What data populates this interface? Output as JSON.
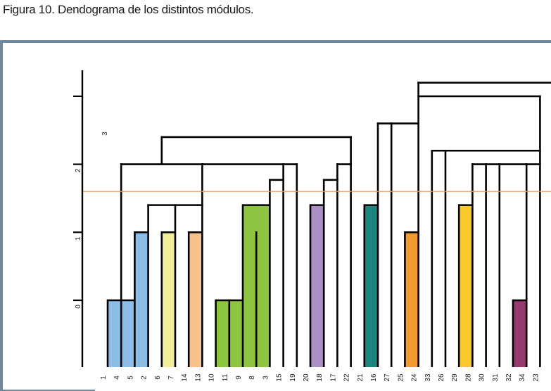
{
  "caption": "Figura 10. Dendograma de los distintos módulos.",
  "chart_data": {
    "type": "dendrogram",
    "title": "Dendograma de los distintos módulos",
    "xlabel": "",
    "ylabel": "",
    "ylim": [
      -1,
      4.2
    ],
    "yticks": [
      {
        "value": 0,
        "label": "0"
      },
      {
        "value": 1,
        "label": "1"
      },
      {
        "value": 2,
        "label": "2"
      },
      {
        "value": 3,
        "label": ""
      }
    ],
    "annotation": {
      "text": "3",
      "value": 2.45,
      "col": 0.3
    },
    "cut_line": {
      "value": 1.6,
      "color": "#e8a060"
    },
    "leaves": [
      "1",
      "4",
      "5",
      "2",
      "6",
      "7",
      "14",
      "13",
      "10",
      "11",
      "9",
      "8",
      "3",
      "15",
      "19",
      "20",
      "18",
      "17",
      "22",
      "21",
      "16",
      "27",
      "25",
      "24",
      "33",
      "26",
      "29",
      "28",
      "30",
      "31",
      "32",
      "34",
      "23"
    ],
    "modules": [
      {
        "name": "blue",
        "color": "#8bbde6",
        "blocks": [
          [
            0,
            2,
            0
          ],
          [
            2,
            3,
            1
          ]
        ]
      },
      {
        "name": "yellow",
        "color": "#f2ee9a",
        "blocks": [
          [
            4,
            5,
            1
          ]
        ]
      },
      {
        "name": "peach",
        "color": "#f9c18e",
        "blocks": [
          [
            6,
            7,
            1
          ]
        ]
      },
      {
        "name": "green",
        "color": "#8dc540",
        "blocks": [
          [
            8,
            10,
            0
          ],
          [
            10,
            12,
            1.4
          ]
        ]
      },
      {
        "name": "lavender",
        "color": "#ab90c6",
        "blocks": [
          [
            15,
            16,
            1.4
          ]
        ]
      },
      {
        "name": "teal",
        "color": "#1d8580",
        "blocks": [
          [
            19,
            20,
            1.4
          ]
        ]
      },
      {
        "name": "orange",
        "color": "#f59a30",
        "blocks": [
          [
            22,
            23,
            1
          ]
        ]
      },
      {
        "name": "gold",
        "color": "#fcc82b",
        "blocks": [
          [
            26,
            27,
            1.4
          ]
        ]
      },
      {
        "name": "plum",
        "color": "#943a6f",
        "blocks": [
          [
            30,
            31,
            0
          ]
        ]
      }
    ],
    "verticals": [
      [
        0,
        -0.98,
        0
      ],
      [
        1,
        -0.98,
        2
      ],
      [
        2,
        -0.98,
        1
      ],
      [
        3,
        -0.98,
        1.4
      ],
      [
        4,
        -0.98,
        1
      ],
      [
        5,
        -0.98,
        1.4
      ],
      [
        6,
        -0.98,
        1
      ],
      [
        7,
        -0.98,
        2
      ],
      [
        1,
        2,
        2
      ],
      [
        4,
        2,
        2.4
      ],
      [
        8,
        -0.98,
        0
      ],
      [
        9,
        -0.98,
        0
      ],
      [
        10,
        -0.98,
        1.4
      ],
      [
        11,
        -0.98,
        1
      ],
      [
        12,
        -0.98,
        1.77
      ],
      [
        13,
        -0.98,
        2
      ],
      [
        14,
        -0.98,
        2
      ],
      [
        15,
        -0.98,
        1.4
      ],
      [
        16,
        -0.98,
        1.77
      ],
      [
        17,
        -0.98,
        2
      ],
      [
        18,
        -0.98,
        2.4
      ],
      [
        19,
        -0.98,
        1.4
      ],
      [
        20,
        -0.98,
        2.6
      ],
      [
        21,
        -0.98,
        2.6
      ],
      [
        22,
        -0.98,
        1
      ],
      [
        23,
        -0.98,
        3.2
      ],
      [
        24,
        -0.98,
        2.2
      ],
      [
        25,
        -0.98,
        2.2
      ],
      [
        26,
        -0.98,
        1.4
      ],
      [
        27,
        -0.98,
        2
      ],
      [
        28,
        -0.98,
        2
      ],
      [
        29,
        -0.98,
        2
      ],
      [
        30,
        -0.98,
        0
      ],
      [
        31,
        -0.98,
        2
      ],
      [
        32,
        -0.98,
        3
      ],
      [
        33,
        -0.98,
        3.2
      ]
    ],
    "horizontals": [
      [
        3,
        7,
        1.4
      ],
      [
        1,
        7,
        2
      ],
      [
        7,
        14,
        2
      ],
      [
        12,
        13,
        1.77
      ],
      [
        4,
        18,
        2.4
      ],
      [
        16,
        17,
        1.77
      ],
      [
        17,
        18,
        2
      ],
      [
        20,
        21,
        2.6
      ],
      [
        21,
        23,
        2.6
      ],
      [
        23,
        32,
        3
      ],
      [
        23,
        33,
        3.2
      ],
      [
        24,
        32,
        2.2
      ],
      [
        27,
        32,
        2
      ]
    ]
  }
}
